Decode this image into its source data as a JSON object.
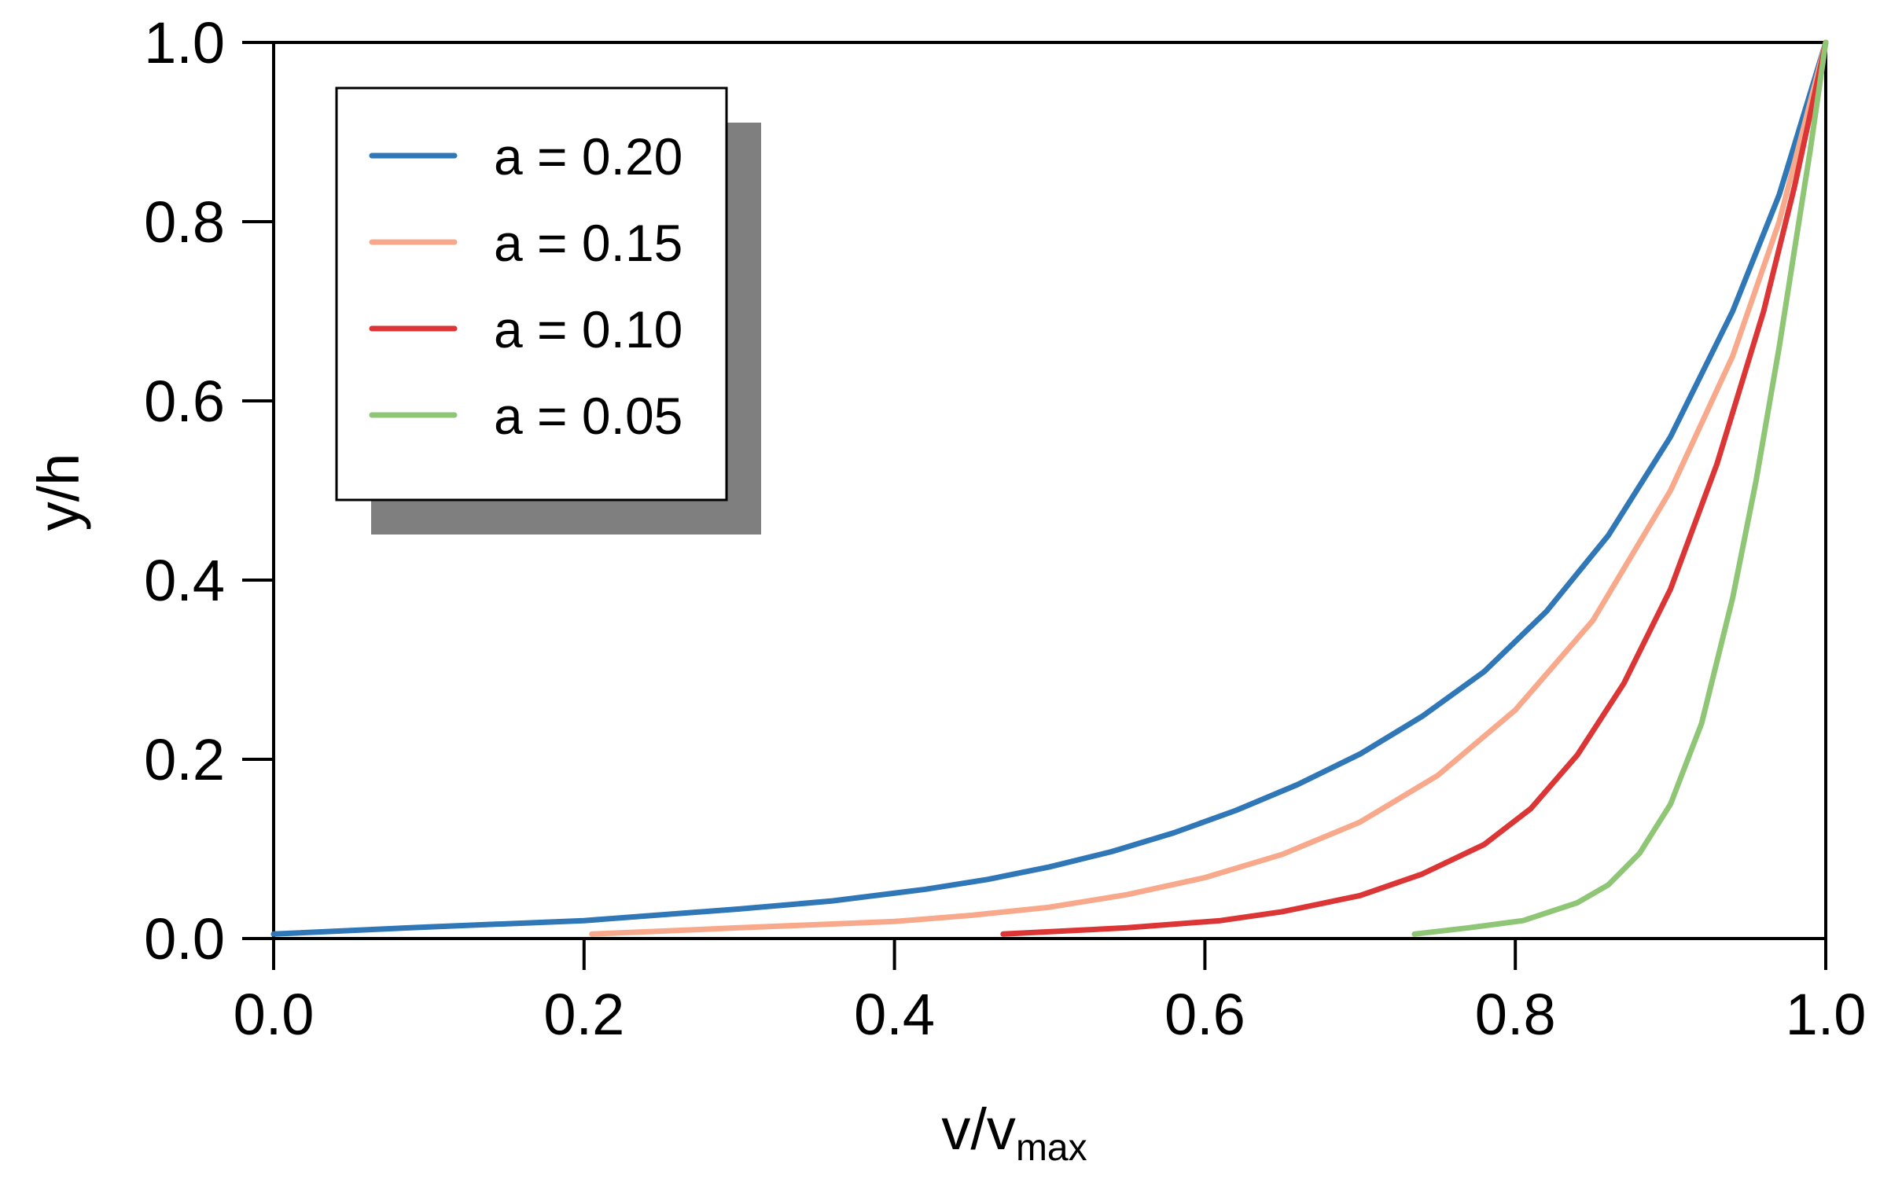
{
  "chart_data": {
    "type": "line",
    "title": "",
    "xlabel_main": "v/v",
    "xlabel_sub": "max",
    "ylabel": "y/h",
    "xlim": [
      0.0,
      1.0
    ],
    "ylim": [
      0.0,
      1.0
    ],
    "xticks": [
      "0.0",
      "0.2",
      "0.4",
      "0.6",
      "0.8",
      "1.0"
    ],
    "yticks": [
      "0.0",
      "0.2",
      "0.4",
      "0.6",
      "0.8",
      "1.0"
    ],
    "grid": false,
    "legend_position": "top-left",
    "series": [
      {
        "name": "a = 0.20",
        "color": "#2f77b7",
        "x": [
          0.0,
          0.1,
          0.2,
          0.3,
          0.36,
          0.42,
          0.46,
          0.5,
          0.54,
          0.58,
          0.62,
          0.66,
          0.7,
          0.74,
          0.78,
          0.82,
          0.86,
          0.9,
          0.94,
          0.97,
          1.0
        ],
        "y": [
          0.005,
          0.013,
          0.02,
          0.033,
          0.042,
          0.055,
          0.066,
          0.08,
          0.097,
          0.118,
          0.143,
          0.172,
          0.206,
          0.248,
          0.298,
          0.365,
          0.45,
          0.56,
          0.7,
          0.83,
          1.0
        ]
      },
      {
        "name": "a = 0.15",
        "color": "#f9a98b",
        "x": [
          0.205,
          0.3,
          0.4,
          0.45,
          0.5,
          0.55,
          0.6,
          0.65,
          0.7,
          0.75,
          0.8,
          0.85,
          0.9,
          0.94,
          0.97,
          1.0
        ],
        "y": [
          0.005,
          0.012,
          0.019,
          0.026,
          0.035,
          0.049,
          0.068,
          0.094,
          0.13,
          0.182,
          0.255,
          0.355,
          0.5,
          0.65,
          0.8,
          1.0
        ]
      },
      {
        "name": "a = 0.10",
        "color": "#db3535",
        "x": [
          0.47,
          0.55,
          0.61,
          0.65,
          0.7,
          0.74,
          0.78,
          0.81,
          0.84,
          0.87,
          0.9,
          0.93,
          0.96,
          0.98,
          1.0
        ],
        "y": [
          0.005,
          0.012,
          0.02,
          0.03,
          0.048,
          0.072,
          0.105,
          0.145,
          0.205,
          0.285,
          0.39,
          0.53,
          0.7,
          0.84,
          1.0
        ]
      },
      {
        "name": "a = 0.05",
        "color": "#8ec675",
        "x": [
          0.735,
          0.77,
          0.805,
          0.84,
          0.86,
          0.88,
          0.9,
          0.92,
          0.94,
          0.955,
          0.97,
          0.98,
          0.99,
          1.0
        ],
        "y": [
          0.005,
          0.012,
          0.02,
          0.04,
          0.06,
          0.095,
          0.15,
          0.24,
          0.38,
          0.51,
          0.66,
          0.77,
          0.88,
          1.0
        ]
      }
    ]
  }
}
